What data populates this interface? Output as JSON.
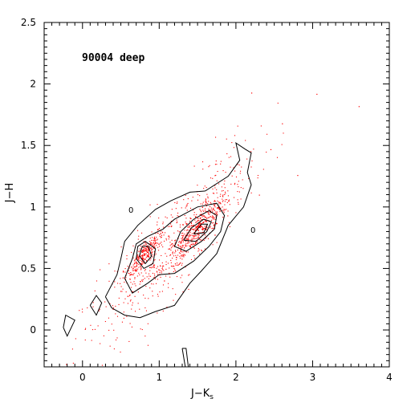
{
  "chart_data": {
    "type": "scatter",
    "annotation": "90004 deep",
    "xlabel": "J−K",
    "xlabel_sub": "s",
    "ylabel": "J−H",
    "xlim": [
      -0.5,
      4
    ],
    "ylim": [
      -0.3,
      2.5
    ],
    "xticks": [
      0,
      1,
      2,
      3,
      4
    ],
    "yticks": [
      0,
      0.5,
      1,
      1.5,
      2,
      2.5
    ],
    "x_tick_labels": [
      "0",
      "1",
      "2",
      "3",
      "4"
    ],
    "y_tick_labels": [
      "0",
      "0.5",
      "1",
      "1.5",
      "2",
      "2.5"
    ],
    "grid": false,
    "point_color": "#ff0000",
    "contour_color": "#000000",
    "contour_label": "0",
    "clumps": [
      {
        "x": 0.8,
        "y": 0.62,
        "sx": 0.12,
        "sy": 0.08,
        "n": 260
      },
      {
        "x": 1.5,
        "y": 0.82,
        "sx": 0.22,
        "sy": 0.12,
        "n": 480
      },
      {
        "x": 1.1,
        "y": 0.65,
        "sx": 0.55,
        "sy": 0.32,
        "n": 520
      }
    ],
    "outliers": [
      {
        "x": 2.2,
        "y": 1.93
      },
      {
        "x": 3.05,
        "y": 1.92
      },
      {
        "x": 3.6,
        "y": 1.82
      },
      {
        "x": 2.6,
        "y": 1.68
      },
      {
        "x": 2.45,
        "y": 1.47
      },
      {
        "x": 2.8,
        "y": 1.26
      },
      {
        "x": 2.3,
        "y": 1.1
      }
    ],
    "contours": [
      {
        "level": "outer",
        "points": [
          [
            0.3,
            0.27
          ],
          [
            0.45,
            0.45
          ],
          [
            0.5,
            0.58
          ],
          [
            0.55,
            0.72
          ],
          [
            0.72,
            0.85
          ],
          [
            0.95,
            0.98
          ],
          [
            1.15,
            1.05
          ],
          [
            1.4,
            1.12
          ],
          [
            1.6,
            1.13
          ],
          [
            1.9,
            1.25
          ],
          [
            2.05,
            1.38
          ],
          [
            2.0,
            1.52
          ],
          [
            2.12,
            1.47
          ],
          [
            2.2,
            1.44
          ],
          [
            2.15,
            1.28
          ],
          [
            2.2,
            1.18
          ],
          [
            2.1,
            1.0
          ],
          [
            1.9,
            0.85
          ],
          [
            1.75,
            0.62
          ],
          [
            1.55,
            0.48
          ],
          [
            1.4,
            0.38
          ],
          [
            1.2,
            0.2
          ],
          [
            0.95,
            0.15
          ],
          [
            0.75,
            0.1
          ],
          [
            0.55,
            0.12
          ],
          [
            0.38,
            0.18
          ],
          [
            0.3,
            0.27
          ]
        ]
      },
      {
        "level": "c2",
        "points": [
          [
            0.55,
            0.42
          ],
          [
            0.65,
            0.58
          ],
          [
            0.7,
            0.7
          ],
          [
            0.85,
            0.76
          ],
          [
            1.05,
            0.82
          ],
          [
            1.2,
            0.9
          ],
          [
            1.5,
            1.0
          ],
          [
            1.75,
            1.03
          ],
          [
            1.85,
            0.93
          ],
          [
            1.8,
            0.8
          ],
          [
            1.65,
            0.68
          ],
          [
            1.45,
            0.56
          ],
          [
            1.2,
            0.46
          ],
          [
            1.0,
            0.45
          ],
          [
            0.85,
            0.38
          ],
          [
            0.65,
            0.3
          ],
          [
            0.55,
            0.42
          ]
        ]
      },
      {
        "level": "c3",
        "points": [
          [
            0.7,
            0.58
          ],
          [
            0.72,
            0.68
          ],
          [
            0.82,
            0.72
          ],
          [
            0.95,
            0.66
          ],
          [
            0.92,
            0.54
          ],
          [
            0.8,
            0.5
          ],
          [
            0.7,
            0.58
          ]
        ]
      },
      {
        "level": "c4",
        "points": [
          [
            0.74,
            0.6
          ],
          [
            0.78,
            0.68
          ],
          [
            0.86,
            0.68
          ],
          [
            0.9,
            0.6
          ],
          [
            0.82,
            0.54
          ],
          [
            0.74,
            0.6
          ]
        ]
      },
      {
        "level": "c5",
        "points": [
          [
            1.2,
            0.68
          ],
          [
            1.28,
            0.8
          ],
          [
            1.45,
            0.9
          ],
          [
            1.65,
            0.97
          ],
          [
            1.75,
            0.93
          ],
          [
            1.72,
            0.82
          ],
          [
            1.55,
            0.72
          ],
          [
            1.35,
            0.64
          ],
          [
            1.2,
            0.68
          ]
        ]
      },
      {
        "level": "c6",
        "points": [
          [
            1.32,
            0.73
          ],
          [
            1.42,
            0.83
          ],
          [
            1.58,
            0.9
          ],
          [
            1.68,
            0.88
          ],
          [
            1.62,
            0.8
          ],
          [
            1.48,
            0.72
          ],
          [
            1.32,
            0.73
          ]
        ]
      },
      {
        "level": "c7",
        "points": [
          [
            1.45,
            0.78
          ],
          [
            1.55,
            0.86
          ],
          [
            1.63,
            0.86
          ],
          [
            1.58,
            0.79
          ],
          [
            1.45,
            0.78
          ]
        ]
      },
      {
        "level": "island1",
        "points": [
          [
            -0.25,
            0.02
          ],
          [
            -0.22,
            0.12
          ],
          [
            -0.1,
            0.08
          ],
          [
            -0.2,
            -0.05
          ],
          [
            -0.25,
            0.02
          ]
        ]
      },
      {
        "level": "island2",
        "points": [
          [
            0.1,
            0.2
          ],
          [
            0.18,
            0.28
          ],
          [
            0.25,
            0.22
          ],
          [
            0.18,
            0.12
          ],
          [
            0.1,
            0.2
          ]
        ]
      },
      {
        "level": "island3",
        "points": [
          [
            1.3,
            -0.15
          ],
          [
            1.34,
            -0.3
          ],
          [
            1.38,
            -0.3
          ],
          [
            1.35,
            -0.15
          ],
          [
            1.3,
            -0.15
          ]
        ]
      }
    ]
  }
}
